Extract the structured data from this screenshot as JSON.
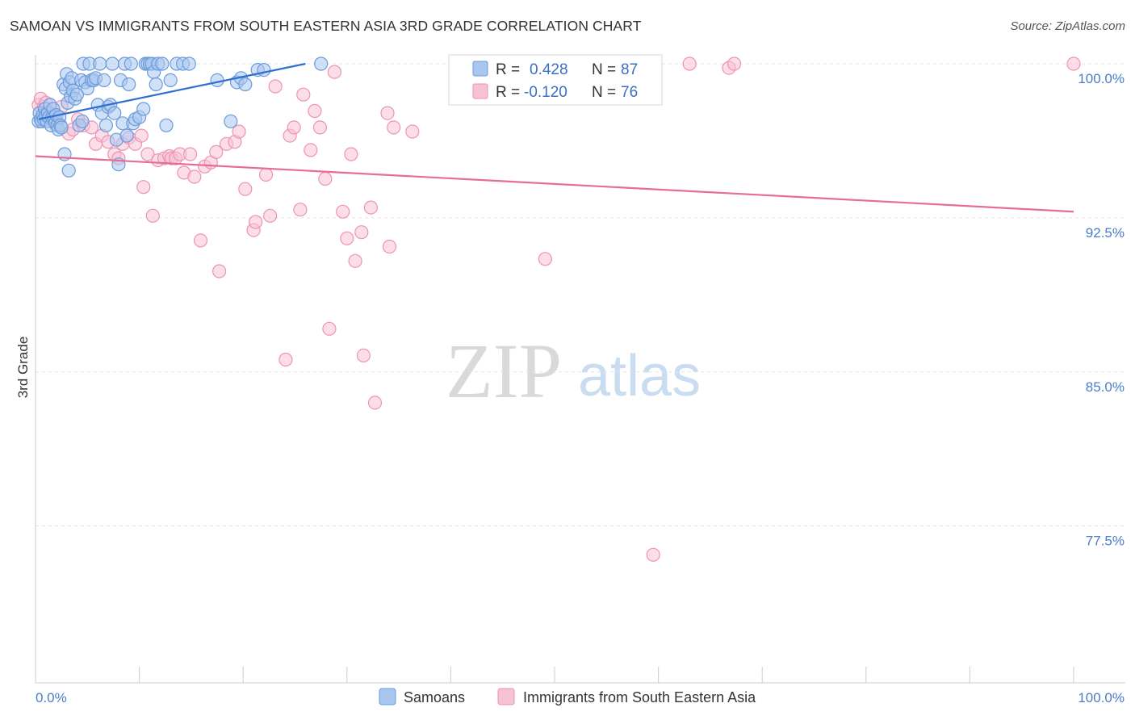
{
  "header": {
    "title": "SAMOAN VS IMMIGRANTS FROM SOUTH EASTERN ASIA 3RD GRADE CORRELATION CHART",
    "source": "Source: ZipAtlas.com"
  },
  "watermark": {
    "zip": "ZIP",
    "atlas": "atlas"
  },
  "legend": {
    "r_label": "R =",
    "n_label": "N =",
    "series1": {
      "r": "0.428",
      "n": "87"
    },
    "series2": {
      "r": "-0.120",
      "n": "76"
    }
  },
  "colors": {
    "blue_fill": "#a9c6ee",
    "blue_stroke": "#6b9bdc",
    "blue_line": "#2e6fcf",
    "pink_fill": "#f7c2d4",
    "pink_stroke": "#ee93b3",
    "pink_line": "#e56d96",
    "tick_text": "#4a7cc9"
  },
  "chart_data": {
    "type": "scatter",
    "title": "SAMOAN VS IMMIGRANTS FROM SOUTH EASTERN ASIA 3RD GRADE CORRELATION CHART",
    "xlabel": "",
    "ylabel": "3rd Grade",
    "xlim": [
      0,
      100
    ],
    "ylim": [
      70.0,
      101.5
    ],
    "y_ticks": [
      100.0,
      92.5,
      85.0,
      77.5
    ],
    "y_tick_labels": [
      "100.0%",
      "92.5%",
      "85.0%",
      "77.5%"
    ],
    "x_tick_labels": [
      "0.0%",
      "100.0%"
    ],
    "grid": true,
    "legend_position": "top-center",
    "series": [
      {
        "name": "Samoans",
        "r": 0.428,
        "n": 87,
        "trend": {
          "x": [
            0.3,
            26.0
          ],
          "y": [
            97.3,
            100.0
          ]
        },
        "points": [
          [
            0.3,
            97.2
          ],
          [
            0.4,
            97.6
          ],
          [
            0.5,
            97.3
          ],
          [
            0.6,
            97.2
          ],
          [
            0.7,
            97.5
          ],
          [
            0.8,
            97.3
          ],
          [
            0.9,
            97.8
          ],
          [
            1.0,
            97.5
          ],
          [
            1.1,
            97.2
          ],
          [
            1.2,
            97.6
          ],
          [
            1.3,
            97.4
          ],
          [
            1.4,
            98.0
          ],
          [
            1.5,
            97.0
          ],
          [
            1.6,
            97.4
          ],
          [
            1.7,
            97.8
          ],
          [
            1.8,
            97.4
          ],
          [
            1.9,
            97.1
          ],
          [
            2.0,
            97.5
          ],
          [
            2.1,
            97.0
          ],
          [
            2.2,
            96.8
          ],
          [
            2.3,
            97.4
          ],
          [
            2.4,
            97.0
          ],
          [
            2.5,
            96.9
          ],
          [
            2.7,
            99.0
          ],
          [
            2.8,
            95.6
          ],
          [
            2.9,
            98.8
          ],
          [
            3.0,
            99.5
          ],
          [
            3.1,
            98.1
          ],
          [
            3.2,
            94.8
          ],
          [
            3.3,
            99.1
          ],
          [
            3.4,
            98.4
          ],
          [
            3.5,
            99.3
          ],
          [
            3.6,
            98.7
          ],
          [
            3.8,
            98.3
          ],
          [
            4.0,
            98.5
          ],
          [
            4.2,
            97.0
          ],
          [
            4.4,
            99.2
          ],
          [
            4.5,
            97.2
          ],
          [
            4.6,
            100.0
          ],
          [
            4.8,
            99.1
          ],
          [
            5.0,
            98.8
          ],
          [
            5.2,
            100.0
          ],
          [
            5.4,
            99.2
          ],
          [
            5.6,
            99.2
          ],
          [
            5.8,
            99.3
          ],
          [
            6.0,
            98.0
          ],
          [
            6.2,
            100.0
          ],
          [
            6.4,
            97.6
          ],
          [
            6.6,
            99.2
          ],
          [
            6.8,
            97.0
          ],
          [
            7.0,
            97.9
          ],
          [
            7.2,
            98.0
          ],
          [
            7.4,
            100.0
          ],
          [
            7.6,
            97.6
          ],
          [
            7.8,
            96.3
          ],
          [
            8.0,
            95.1
          ],
          [
            8.2,
            99.2
          ],
          [
            8.4,
            97.1
          ],
          [
            8.6,
            100.0
          ],
          [
            8.8,
            96.5
          ],
          [
            9.0,
            99.0
          ],
          [
            9.2,
            100.0
          ],
          [
            9.4,
            97.1
          ],
          [
            9.6,
            97.3
          ],
          [
            10.0,
            97.4
          ],
          [
            10.4,
            97.8
          ],
          [
            10.6,
            100.0
          ],
          [
            10.8,
            100.0
          ],
          [
            11.0,
            100.0
          ],
          [
            11.2,
            100.0
          ],
          [
            11.4,
            99.6
          ],
          [
            11.6,
            99.0
          ],
          [
            11.8,
            100.0
          ],
          [
            12.2,
            100.0
          ],
          [
            12.6,
            97.0
          ],
          [
            13.0,
            99.2
          ],
          [
            13.6,
            100.0
          ],
          [
            14.2,
            100.0
          ],
          [
            14.8,
            100.0
          ],
          [
            17.5,
            99.2
          ],
          [
            18.8,
            97.2
          ],
          [
            19.4,
            99.1
          ],
          [
            19.8,
            99.3
          ],
          [
            20.2,
            99.0
          ],
          [
            21.4,
            99.7
          ],
          [
            22.0,
            99.7
          ],
          [
            27.5,
            100.0
          ]
        ]
      },
      {
        "name": "Immigrants from South Eastern Asia",
        "r": -0.12,
        "n": 76,
        "trend": {
          "x": [
            0.0,
            100.0
          ],
          "y": [
            95.5,
            92.8
          ]
        },
        "points": [
          [
            0.3,
            98.0
          ],
          [
            0.5,
            98.3
          ],
          [
            0.8,
            97.9
          ],
          [
            1.0,
            98.1
          ],
          [
            1.4,
            97.6
          ],
          [
            2.0,
            97.2
          ],
          [
            2.5,
            97.9
          ],
          [
            3.2,
            96.6
          ],
          [
            3.6,
            96.8
          ],
          [
            4.1,
            97.3
          ],
          [
            4.6,
            97.0
          ],
          [
            5.4,
            96.9
          ],
          [
            5.8,
            96.1
          ],
          [
            6.4,
            96.5
          ],
          [
            7.0,
            96.2
          ],
          [
            7.6,
            95.6
          ],
          [
            8.0,
            95.4
          ],
          [
            8.4,
            96.1
          ],
          [
            9.0,
            96.4
          ],
          [
            9.6,
            96.1
          ],
          [
            10.2,
            96.5
          ],
          [
            10.4,
            94.0
          ],
          [
            10.8,
            95.6
          ],
          [
            11.3,
            92.6
          ],
          [
            11.8,
            95.3
          ],
          [
            12.4,
            95.4
          ],
          [
            12.9,
            95.5
          ],
          [
            13.1,
            95.4
          ],
          [
            13.5,
            95.4
          ],
          [
            13.9,
            95.6
          ],
          [
            14.3,
            94.7
          ],
          [
            14.9,
            95.6
          ],
          [
            15.3,
            94.5
          ],
          [
            15.9,
            91.4
          ],
          [
            16.3,
            95.0
          ],
          [
            16.9,
            95.2
          ],
          [
            17.4,
            95.7
          ],
          [
            17.7,
            89.9
          ],
          [
            18.4,
            96.1
          ],
          [
            19.2,
            96.2
          ],
          [
            19.6,
            96.7
          ],
          [
            20.2,
            93.9
          ],
          [
            21.0,
            91.9
          ],
          [
            21.2,
            92.3
          ],
          [
            22.2,
            94.6
          ],
          [
            22.6,
            92.6
          ],
          [
            23.1,
            98.9
          ],
          [
            24.1,
            85.6
          ],
          [
            24.5,
            96.5
          ],
          [
            24.9,
            96.9
          ],
          [
            25.5,
            92.9
          ],
          [
            25.8,
            98.5
          ],
          [
            26.5,
            95.8
          ],
          [
            26.9,
            97.7
          ],
          [
            27.4,
            96.9
          ],
          [
            27.9,
            94.4
          ],
          [
            28.3,
            87.1
          ],
          [
            28.8,
            99.6
          ],
          [
            29.6,
            92.8
          ],
          [
            30.0,
            91.5
          ],
          [
            30.4,
            95.6
          ],
          [
            30.8,
            90.4
          ],
          [
            31.4,
            91.8
          ],
          [
            31.6,
            85.8
          ],
          [
            32.3,
            93.0
          ],
          [
            32.7,
            83.5
          ],
          [
            34.1,
            91.1
          ],
          [
            34.5,
            96.9
          ],
          [
            33.9,
            97.6
          ],
          [
            36.3,
            96.7
          ],
          [
            49.1,
            90.5
          ],
          [
            59.5,
            76.1
          ],
          [
            63.0,
            100.0
          ],
          [
            66.8,
            99.8
          ],
          [
            67.3,
            100.0
          ],
          [
            100.0,
            100.0
          ]
        ]
      }
    ]
  }
}
